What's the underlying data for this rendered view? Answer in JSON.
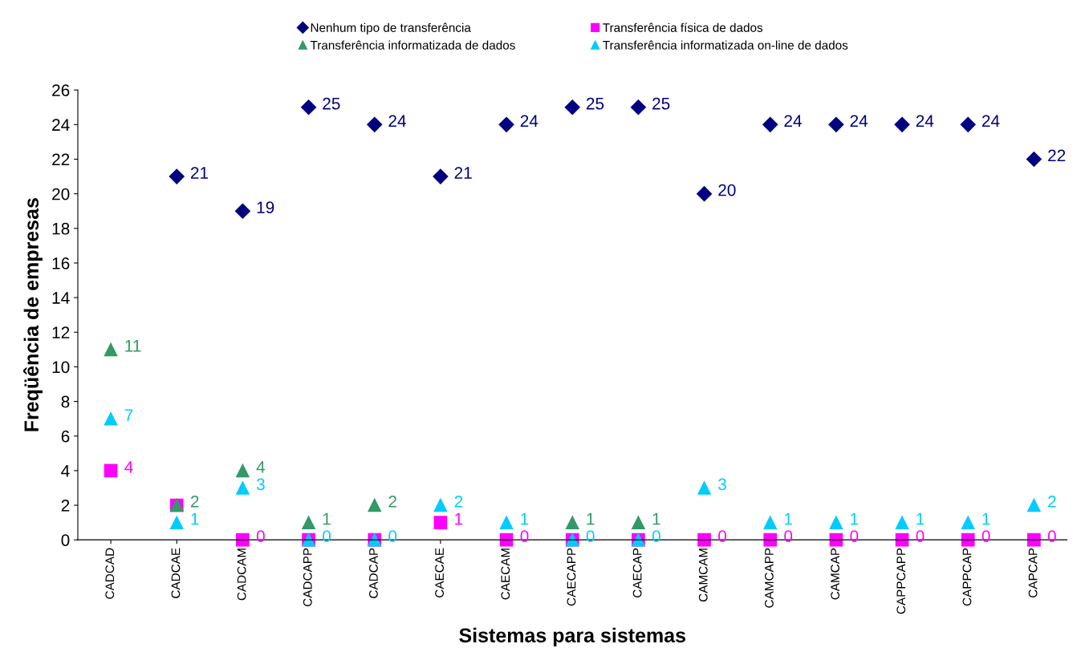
{
  "chart_data": {
    "type": "scatter",
    "xlabel": "Sistemas para sistemas",
    "ylabel": "Freqüência de empresas",
    "categories": [
      "CADCAD",
      "CADCAE",
      "CADCAM",
      "CADCAPP",
      "CADCAP",
      "CAECAE",
      "CAECAM",
      "CAECAPP",
      "CAECAP",
      "CAMCAM",
      "CAMCAPP",
      "CAMCAP",
      "CAPPCAPP",
      "CAPPCAP",
      "CAPCAP"
    ],
    "series": [
      {
        "name": "Nenhum tipo de transferência",
        "color": "#000080",
        "marker": "diamond",
        "values": [
          null,
          21,
          19,
          25,
          24,
          21,
          24,
          25,
          25,
          20,
          24,
          24,
          24,
          24,
          22
        ],
        "value_labels": [
          null,
          "21",
          "19",
          "25",
          "24",
          "21",
          "24",
          "25",
          "25",
          "20",
          "24",
          "24",
          "24",
          "24",
          "22"
        ]
      },
      {
        "name": "Transferência física de dados",
        "color": "#ff00ff",
        "marker": "square",
        "values": [
          4,
          2,
          0,
          0,
          0,
          1,
          0,
          0,
          0,
          0,
          0,
          0,
          0,
          0,
          0
        ],
        "value_labels": [
          "4",
          null,
          "0",
          null,
          null,
          "1",
          "0",
          null,
          null,
          "0",
          "0",
          "0",
          "0",
          "0",
          "0"
        ]
      },
      {
        "name": "Transferência informatizada de dados",
        "color": "#339966",
        "marker": "triangle",
        "values": [
          11,
          2,
          4,
          1,
          2,
          null,
          null,
          1,
          1,
          null,
          null,
          null,
          null,
          null,
          null
        ],
        "value_labels": [
          "11",
          "2",
          "4",
          "1",
          "2",
          null,
          null,
          "1",
          "1",
          null,
          null,
          null,
          null,
          null,
          null
        ]
      },
      {
        "name": "Transferência informatizada on-line de dados",
        "color": "#00ccff",
        "marker": "triangle",
        "values": [
          7,
          1,
          3,
          0,
          0,
          2,
          1,
          0,
          0,
          3,
          1,
          1,
          1,
          1,
          2
        ],
        "value_labels": [
          "7",
          "1",
          "3",
          "0",
          "0",
          "2",
          "1",
          "0",
          "0",
          "3",
          "1",
          "1",
          "1",
          "1",
          "2"
        ]
      }
    ],
    "ylim": [
      0,
      26
    ],
    "yticks": [
      0,
      2,
      4,
      6,
      8,
      10,
      12,
      14,
      16,
      18,
      20,
      22,
      24,
      26
    ],
    "grid": false,
    "legend": "top"
  }
}
